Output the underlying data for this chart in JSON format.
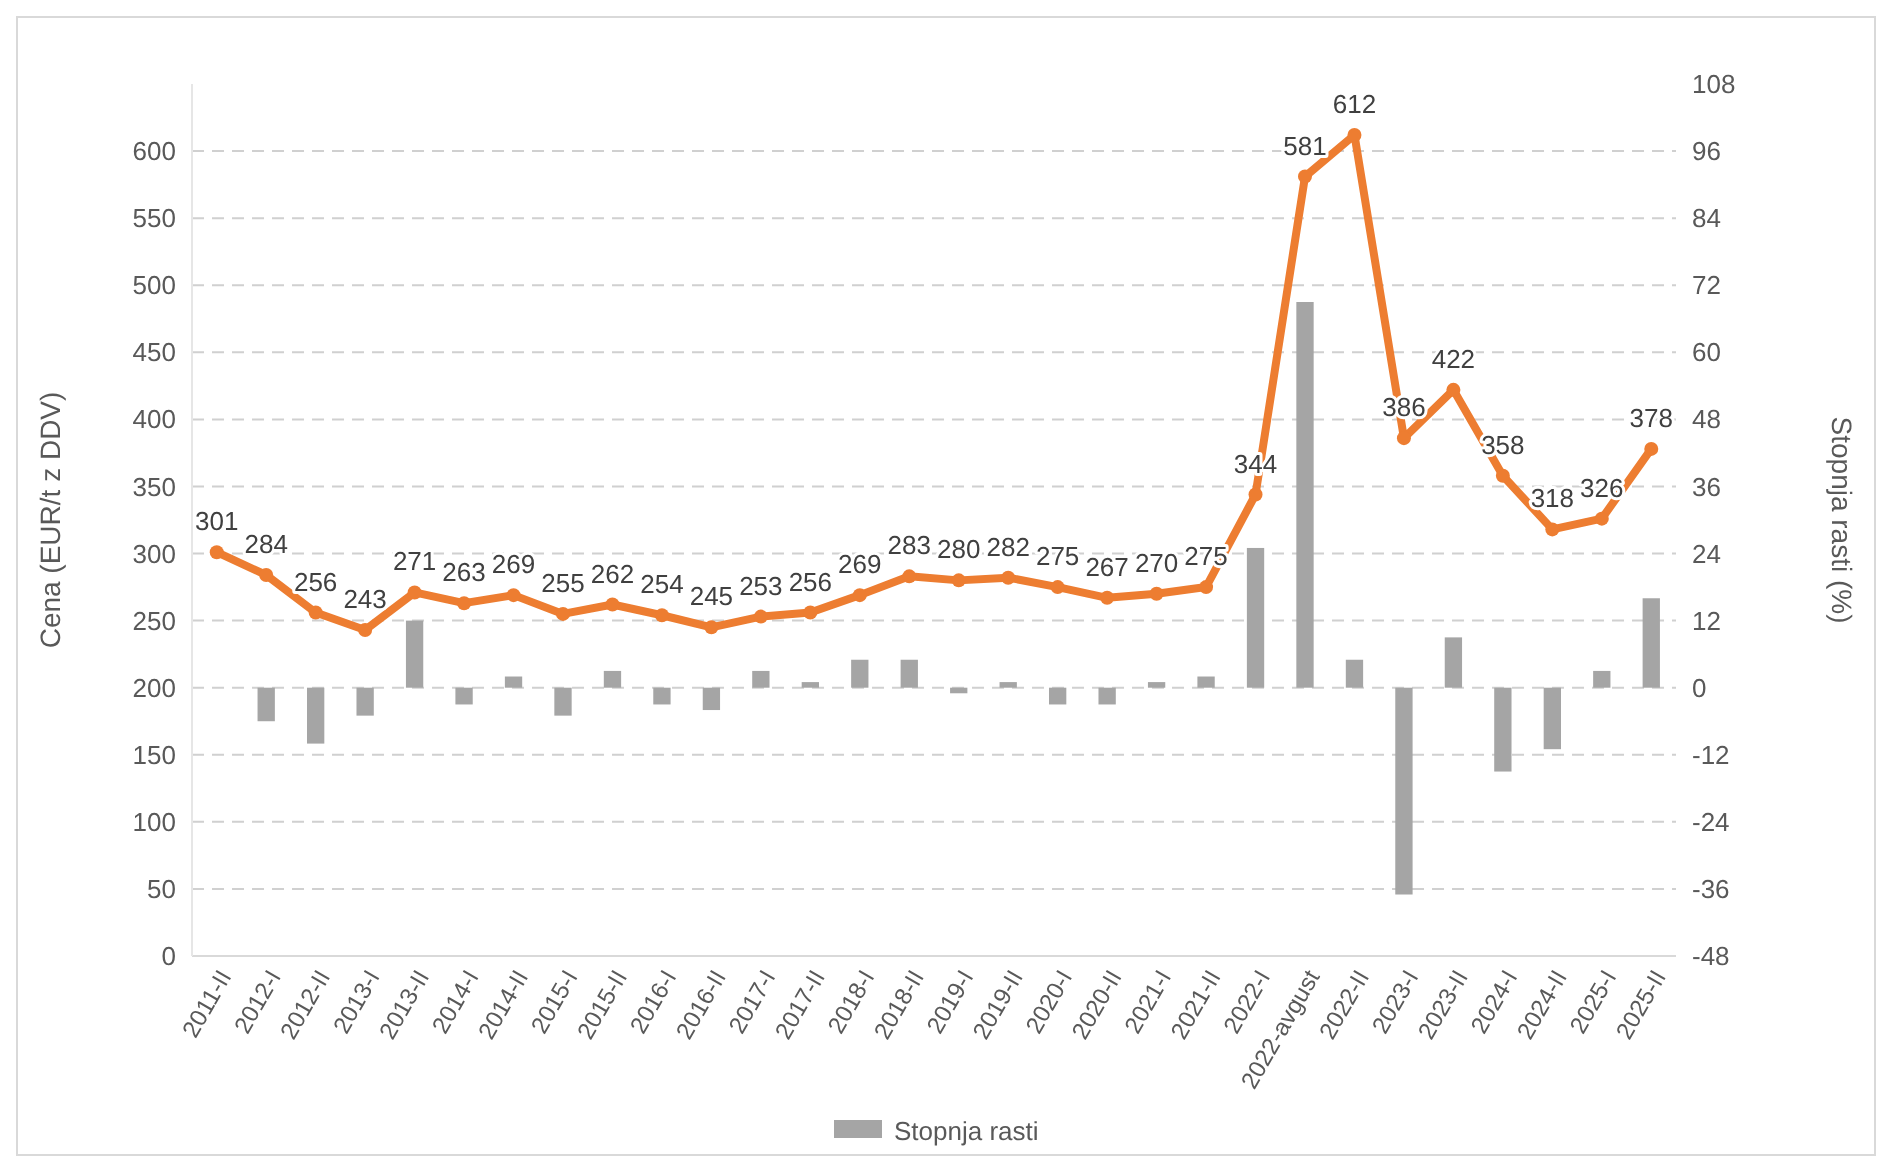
{
  "chart_data": {
    "type": "line",
    "ylabel": "Cena (EUR/t z DDV)",
    "y2label": "Stopnja rasti (%)",
    "categories": [
      "2011-II",
      "2012-I",
      "2012-II",
      "2013-I",
      "2013-II",
      "2014-I",
      "2014-II",
      "2015-I",
      "2015-II",
      "2016-I",
      "2016-II",
      "2017-I",
      "2017-II",
      "2018-I",
      "2018-II",
      "2019-I",
      "2019-II",
      "2020-I",
      "2020-II",
      "2021-I",
      "2021-II",
      "2022-I",
      "2022-avgust",
      "2022-II",
      "2023-I",
      "2023-II",
      "2024-I",
      "2024-II",
      "2025-I",
      "2025-II"
    ],
    "series": [
      {
        "type": "bar",
        "axis": "y2",
        "name": "Stopnja rasti",
        "color": "#a5a5a5",
        "values": [
          null,
          -6,
          -10,
          -5,
          12,
          -3,
          2,
          -5,
          3,
          -3,
          -4,
          3,
          1,
          5,
          5,
          -1,
          1,
          -3,
          -3,
          1,
          2,
          25,
          69,
          5,
          -37,
          9,
          -15,
          -11,
          3,
          16
        ]
      },
      {
        "color": "#ed7d31",
        "marker": "circle",
        "data_labels": true,
        "values": [
          301,
          284,
          256,
          243,
          271,
          263,
          269,
          255,
          262,
          254,
          245,
          253,
          256,
          269,
          283,
          280,
          282,
          275,
          267,
          270,
          275,
          344,
          581,
          612,
          386,
          422,
          358,
          318,
          326,
          378
        ]
      }
    ],
    "ylim": [
      0,
      650
    ],
    "yticks": [
      0,
      50,
      100,
      150,
      200,
      250,
      300,
      350,
      400,
      450,
      500,
      550,
      600
    ],
    "y2lim": [
      -48,
      108
    ],
    "y2ticks": [
      -48,
      -36,
      -24,
      -12,
      0,
      12,
      24,
      36,
      48,
      60,
      72,
      84,
      96,
      108
    ],
    "grid": "y",
    "legend": "bottom"
  }
}
